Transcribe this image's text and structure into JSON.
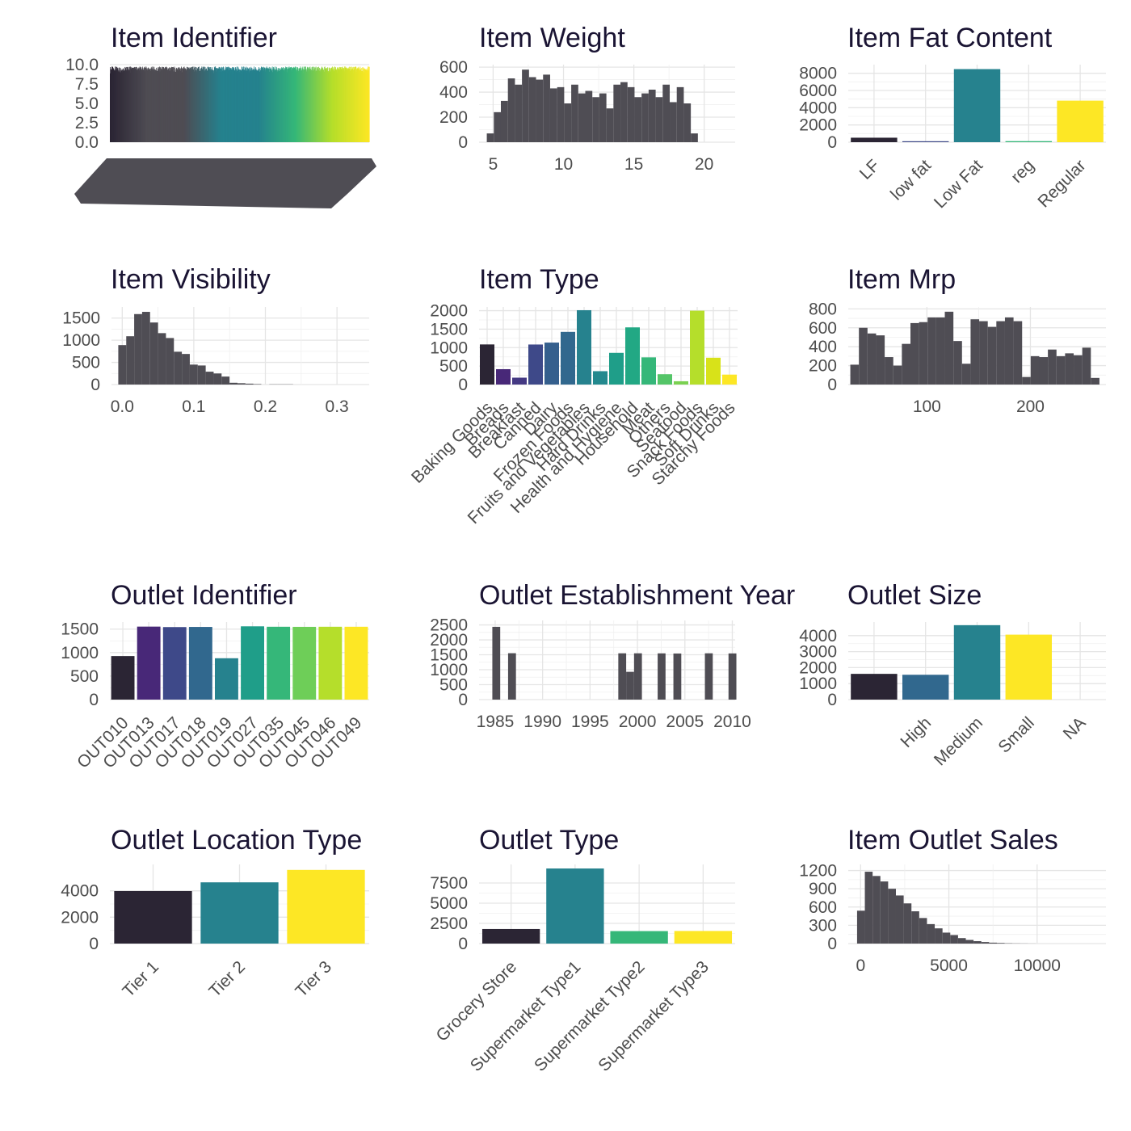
{
  "palette": {
    "viridis": [
      "#440154",
      "#482878",
      "#3e4989",
      "#31688e",
      "#26828e",
      "#1f9e89",
      "#35b779",
      "#6ece58",
      "#b5de2b",
      "#fde725"
    ],
    "bar_dark": "#2b2534",
    "histogram": "#4f4d54",
    "grid": "#e5e5e5",
    "title": "#1a1433",
    "tick": "#4d4d4d"
  },
  "chart_data": [
    {
      "id": "item-identifier",
      "type": "bar",
      "title": "Item Identifier",
      "xlabel": "",
      "ylabel": "",
      "ylim": [
        0,
        10
      ],
      "yticks": [
        0,
        2.5,
        5,
        7.5,
        10
      ],
      "ytick_labels": [
        "0.0",
        "2.5",
        "5.0",
        "7.5",
        "10.0"
      ],
      "n_bars": 1559,
      "bar_min": 7,
      "bar_max": 10,
      "fill": "viridis-gradient",
      "xtick_labels": "overplotted"
    },
    {
      "id": "item-weight",
      "type": "histogram",
      "title": "Item Weight",
      "xlim": [
        4,
        22.2
      ],
      "ylim": [
        0,
        620
      ],
      "xticks": [
        5,
        10,
        15,
        20
      ],
      "xtick_labels": [
        "5",
        "10",
        "15",
        "20"
      ],
      "yticks": [
        0,
        200,
        400,
        600
      ],
      "ytick_labels": [
        "0",
        "200",
        "400",
        "600"
      ],
      "bin_start": 4.55,
      "bin_width": 0.5,
      "values": [
        70,
        240,
        330,
        510,
        460,
        580,
        520,
        500,
        540,
        430,
        440,
        310,
        460,
        390,
        410,
        360,
        390,
        270,
        460,
        480,
        440,
        360,
        390,
        420,
        360,
        460,
        320,
        440,
        310,
        70
      ]
    },
    {
      "id": "item-fat-content",
      "type": "bar",
      "title": "Item Fat Content",
      "categories": [
        "LF",
        "low fat",
        "Low Fat",
        "reg",
        "Regular"
      ],
      "values": [
        520,
        110,
        8480,
        120,
        4820
      ],
      "colors": [
        "#2b2534",
        "#3e4989",
        "#26828e",
        "#35b779",
        "#fde725"
      ],
      "ylim": [
        0,
        9000
      ],
      "yticks": [
        0,
        2000,
        4000,
        6000,
        8000
      ],
      "ytick_labels": [
        "0",
        "2000",
        "4000",
        "6000",
        "8000"
      ]
    },
    {
      "id": "item-visibility",
      "type": "histogram",
      "title": "Item Visibility",
      "xlim": [
        -0.015,
        0.345
      ],
      "ylim": [
        0,
        1750
      ],
      "xticks": [
        0,
        0.1,
        0.2,
        0.3
      ],
      "xtick_labels": [
        "0.0",
        "0.1",
        "0.2",
        "0.3"
      ],
      "yticks": [
        0,
        500,
        1000,
        1500
      ],
      "ytick_labels": [
        "0",
        "500",
        "1000",
        "1500"
      ],
      "bin_start": -0.0055,
      "bin_width": 0.0111,
      "values": [
        890,
        1090,
        1590,
        1640,
        1400,
        1160,
        1050,
        740,
        690,
        450,
        430,
        290,
        250,
        180,
        40,
        30,
        20,
        10,
        0,
        5,
        5,
        5,
        0,
        0,
        0,
        0,
        0,
        0,
        0,
        0
      ]
    },
    {
      "id": "item-type",
      "type": "bar",
      "title": "Item Type",
      "categories": [
        "Baking Goods",
        "Breads",
        "Breakfast",
        "Canned",
        "Dairy",
        "Frozen Foods",
        "Fruits and Vegetables",
        "Hard Drinks",
        "Health and Hygiene",
        "Household",
        "Meat",
        "Others",
        "Seafood",
        "Snack Foods",
        "Soft Drinks",
        "Starchy Foods"
      ],
      "values": [
        1086,
        416,
        186,
        1084,
        1136,
        1426,
        2013,
        362,
        858,
        1548,
        736,
        280,
        89,
        2000,
        726,
        269
      ],
      "colors": [
        "#2b2534",
        "#482878",
        "#443983",
        "#3e4989",
        "#355f8d",
        "#31688e",
        "#26828e",
        "#23898e",
        "#1f9e89",
        "#22a884",
        "#35b779",
        "#54c568",
        "#7ad151",
        "#b5de2b",
        "#d8e219",
        "#fde725"
      ],
      "ylim": [
        0,
        2100
      ],
      "yticks": [
        0,
        500,
        1000,
        1500,
        2000
      ],
      "ytick_labels": [
        "0",
        "500",
        "1000",
        "1500",
        "2000"
      ]
    },
    {
      "id": "item-mrp",
      "type": "histogram",
      "title": "Item Mrp",
      "xlim": [
        24,
        273
      ],
      "ylim": [
        0,
        820
      ],
      "xticks": [
        100,
        200
      ],
      "xtick_labels": [
        "100",
        "200"
      ],
      "yticks": [
        0,
        200,
        400,
        600,
        800
      ],
      "ytick_labels": [
        "0",
        "200",
        "400",
        "600",
        "800"
      ],
      "bin_start": 26,
      "bin_width": 8.3,
      "values": [
        210,
        600,
        540,
        520,
        290,
        200,
        430,
        650,
        660,
        710,
        710,
        770,
        460,
        220,
        690,
        670,
        610,
        670,
        710,
        670,
        80,
        300,
        290,
        370,
        300,
        330,
        310,
        390,
        70
      ]
    },
    {
      "id": "outlet-identifier",
      "type": "bar",
      "title": "Outlet Identifier",
      "categories": [
        "OUT010",
        "OUT013",
        "OUT017",
        "OUT018",
        "OUT019",
        "OUT027",
        "OUT035",
        "OUT045",
        "OUT046",
        "OUT049"
      ],
      "values": [
        926,
        1553,
        1543,
        1546,
        880,
        1559,
        1550,
        1548,
        1550,
        1550
      ],
      "colors": [
        "#2b2534",
        "#482878",
        "#3e4989",
        "#31688e",
        "#26828e",
        "#1f9e89",
        "#35b779",
        "#6ece58",
        "#b5de2b",
        "#fde725"
      ],
      "ylim": [
        0,
        1650
      ],
      "yticks": [
        0,
        500,
        1000,
        1500
      ],
      "ytick_labels": [
        "0",
        "500",
        "1000",
        "1500"
      ]
    },
    {
      "id": "outlet-establishment-year",
      "type": "histogram",
      "title": "Outlet Establishment Year",
      "xlim": [
        1983.3,
        2010.3
      ],
      "ylim": [
        0,
        2650
      ],
      "xticks": [
        1985,
        1990,
        1995,
        2000,
        2005,
        2010
      ],
      "xtick_labels": [
        "1985",
        "1990",
        "1995",
        "2000",
        "2005",
        "2010"
      ],
      "yticks": [
        0,
        500,
        1000,
        1500,
        2000,
        2500
      ],
      "ytick_labels": [
        "0",
        "500",
        "1000",
        "1500",
        "2000",
        "2500"
      ],
      "bin_start": 1984.7,
      "bin_width": 0.83,
      "values": [
        2436,
        0,
        1553,
        0,
        0,
        0,
        0,
        0,
        0,
        0,
        0,
        0,
        0,
        0,
        0,
        0,
        1550,
        930,
        1550,
        0,
        0,
        1548,
        0,
        1543,
        0,
        0,
        0,
        1550,
        0,
        0,
        1546
      ]
    },
    {
      "id": "outlet-size",
      "type": "bar",
      "title": "Outlet Size",
      "categories": [
        "",
        "High",
        "Medium",
        "Small",
        "NA"
      ],
      "values": [
        1610,
        1553,
        4655,
        4062,
        0
      ],
      "colors": [
        "#2b2534",
        "#31688e",
        "#26828e",
        "#fde725",
        "#ffffff"
      ],
      "ylim": [
        0,
        4850
      ],
      "yticks": [
        0,
        1000,
        2000,
        3000,
        4000
      ],
      "ytick_labels": [
        "0",
        "1000",
        "2000",
        "3000",
        "4000"
      ]
    },
    {
      "id": "outlet-location-type",
      "type": "bar",
      "title": "Outlet Location Type",
      "categories": [
        "Tier 1",
        "Tier 2",
        "Tier 3"
      ],
      "values": [
        3980,
        4641,
        5583
      ],
      "colors": [
        "#2b2534",
        "#26828e",
        "#fde725"
      ],
      "ylim": [
        0,
        6000
      ],
      "yticks": [
        0,
        2000,
        4000
      ],
      "ytick_labels": [
        "0",
        "2000",
        "4000"
      ]
    },
    {
      "id": "outlet-type",
      "type": "bar",
      "title": "Outlet Type",
      "categories": [
        "Grocery Store",
        "Supermarket Type1",
        "Supermarket Type2",
        "Supermarket Type3"
      ],
      "values": [
        1805,
        9294,
        1546,
        1559
      ],
      "colors": [
        "#2b2534",
        "#26828e",
        "#35b779",
        "#fde725"
      ],
      "ylim": [
        0,
        9800
      ],
      "yticks": [
        0,
        2500,
        5000,
        7500
      ],
      "ytick_labels": [
        "0",
        "2500",
        "5000",
        "7500"
      ]
    },
    {
      "id": "item-outlet-sales",
      "type": "histogram",
      "title": "Item Outlet Sales",
      "xlim": [
        -700,
        13900
      ],
      "ylim": [
        0,
        1300
      ],
      "xticks": [
        0,
        5000,
        10000
      ],
      "xtick_labels": [
        "0",
        "5000",
        "10000"
      ],
      "yticks": [
        0,
        300,
        600,
        900,
        1200
      ],
      "ytick_labels": [
        "0",
        "300",
        "600",
        "900",
        "1200"
      ],
      "bin_start": -200,
      "bin_width": 440,
      "values": [
        540,
        1180,
        1110,
        1020,
        900,
        790,
        660,
        530,
        420,
        320,
        250,
        180,
        140,
        90,
        60,
        40,
        25,
        15,
        10,
        5,
        3,
        2,
        1,
        0,
        0,
        0,
        0,
        0,
        0,
        0
      ]
    }
  ]
}
